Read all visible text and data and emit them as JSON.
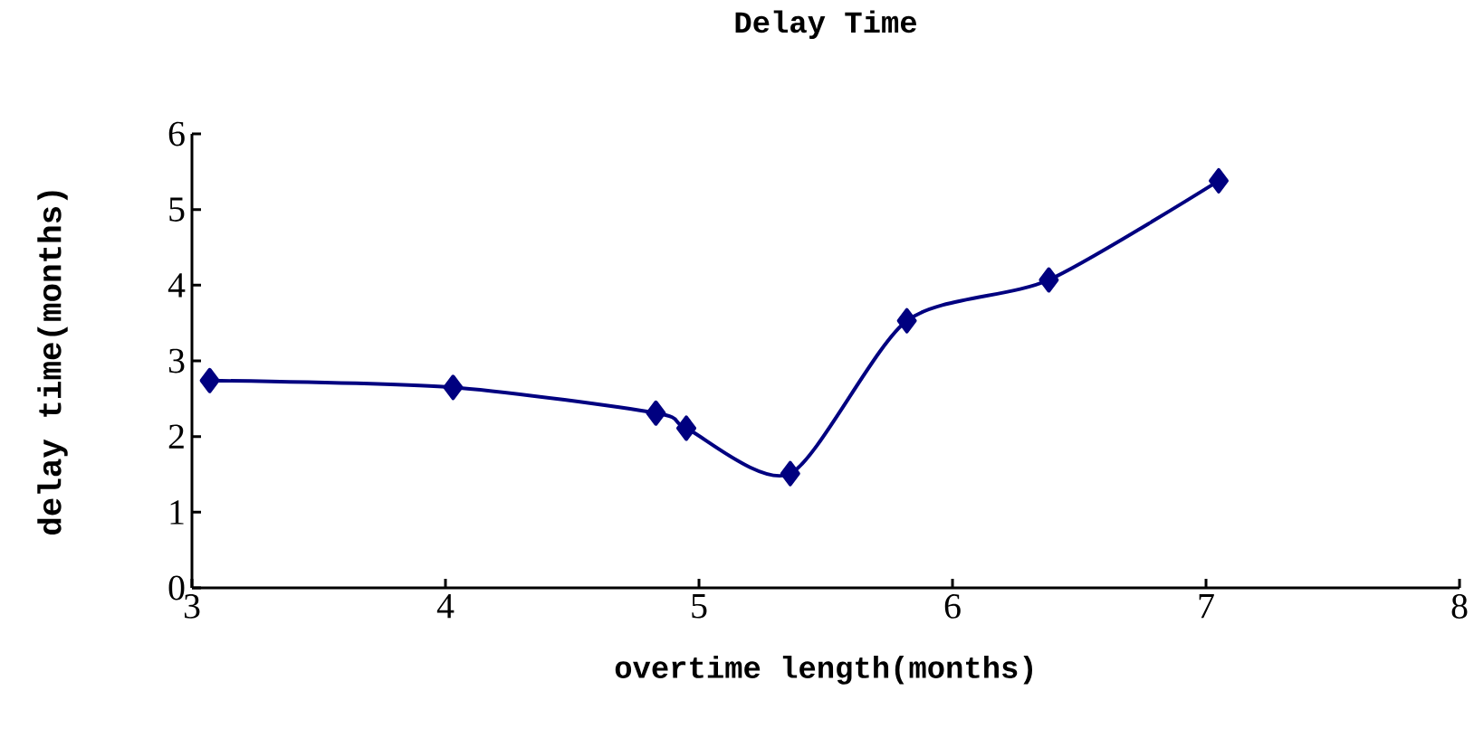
{
  "chart_data": {
    "type": "line",
    "title": "Delay Time",
    "xlabel": "overtime length(months)",
    "ylabel": "delay time(months)",
    "x": [
      3.07,
      4.03,
      4.83,
      4.95,
      5.36,
      5.82,
      6.38,
      7.05
    ],
    "series": [
      {
        "color": "#000080",
        "values": [
          2.74,
          2.65,
          2.31,
          2.11,
          1.51,
          3.53,
          4.07,
          5.38
        ]
      }
    ],
    "xlim": [
      3,
      8
    ],
    "ylim": [
      0,
      6
    ],
    "xticks": [
      3,
      4,
      5,
      6,
      7,
      8
    ],
    "yticks": [
      0,
      1,
      2,
      3,
      4,
      5,
      6
    ],
    "marker": "diamond",
    "line_style": "solid",
    "grid": false
  }
}
